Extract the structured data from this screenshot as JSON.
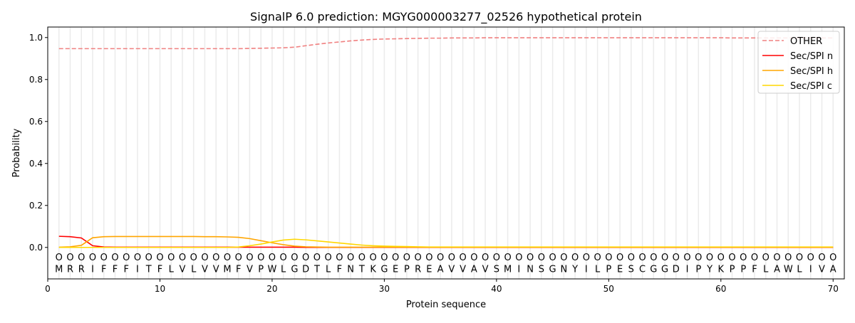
{
  "chart_data": {
    "type": "line",
    "title": "SignalP 6.0 prediction: MGYG000003277_02526 hypothetical protein",
    "xlabel": "Protein sequence",
    "ylabel": "Probability",
    "xlim": [
      0,
      71
    ],
    "ylim": [
      -0.15,
      1.05
    ],
    "xticks": [
      0,
      10,
      20,
      30,
      40,
      50,
      60,
      70
    ],
    "yticks": [
      "0.0",
      "0.2",
      "0.4",
      "0.6",
      "0.8",
      "1.0"
    ],
    "grid": "vertical lines at each residue",
    "legend_position": "top-right",
    "sequence": [
      "M",
      "R",
      "R",
      "I",
      "F",
      "F",
      "F",
      "I",
      "T",
      "F",
      "L",
      "V",
      "L",
      "V",
      "V",
      "M",
      "F",
      "V",
      "P",
      "W",
      "L",
      "G",
      "D",
      "T",
      "L",
      "F",
      "N",
      "T",
      "K",
      "G",
      "E",
      "P",
      "R",
      "E",
      "A",
      "V",
      "V",
      "A",
      "V",
      "S",
      "M",
      "I",
      "N",
      "S",
      "G",
      "N",
      "Y",
      "I",
      "L",
      "P",
      "E",
      "S",
      "C",
      "G",
      "G",
      "D",
      "I",
      "P",
      "Y",
      "K",
      "P",
      "P",
      "F",
      "L",
      "A",
      "W",
      "L",
      "I",
      "V",
      "A"
    ],
    "region_label": "O",
    "series": [
      {
        "name": "OTHER",
        "color": "#f08080",
        "dash": true,
        "values": [
          0.947,
          0.947,
          0.947,
          0.947,
          0.947,
          0.947,
          0.947,
          0.947,
          0.947,
          0.947,
          0.947,
          0.947,
          0.947,
          0.947,
          0.947,
          0.947,
          0.947,
          0.948,
          0.949,
          0.95,
          0.951,
          0.954,
          0.961,
          0.968,
          0.974,
          0.979,
          0.984,
          0.988,
          0.991,
          0.993,
          0.994,
          0.995,
          0.996,
          0.997,
          0.997,
          0.998,
          0.998,
          0.998,
          0.999,
          0.999,
          0.999,
          0.999,
          0.999,
          0.999,
          0.999,
          0.999,
          0.999,
          0.999,
          0.999,
          0.999,
          0.999,
          0.999,
          0.999,
          0.999,
          0.999,
          0.999,
          0.999,
          0.999,
          0.999,
          0.999,
          0.998,
          0.998,
          0.998,
          0.998,
          0.998,
          0.998,
          0.998,
          0.998,
          0.998,
          0.998
        ]
      },
      {
        "name": "Sec/SPI n",
        "color": "#ff0000",
        "dash": false,
        "values": [
          0.053,
          0.051,
          0.045,
          0.008,
          0.002,
          0.001,
          0.001,
          0.001,
          0.001,
          0.001,
          0.001,
          0.001,
          0.001,
          0.001,
          0.001,
          0.001,
          0.001,
          0.001,
          0.001,
          0.001,
          0.001,
          0.001,
          0,
          0,
          0,
          0,
          0,
          0,
          0,
          0,
          0,
          0,
          0,
          0,
          0,
          0,
          0,
          0,
          0,
          0,
          0,
          0,
          0,
          0,
          0,
          0,
          0,
          0,
          0,
          0,
          0,
          0,
          0,
          0,
          0,
          0,
          0,
          0,
          0,
          0,
          0,
          0,
          0,
          0,
          0,
          0,
          0,
          0,
          0,
          0
        ]
      },
      {
        "name": "Sec/SPI h",
        "color": "#ffa500",
        "dash": false,
        "values": [
          0.001,
          0.003,
          0.01,
          0.046,
          0.051,
          0.052,
          0.052,
          0.052,
          0.052,
          0.052,
          0.052,
          0.052,
          0.052,
          0.051,
          0.051,
          0.05,
          0.048,
          0.042,
          0.032,
          0.022,
          0.013,
          0.006,
          0.003,
          0.002,
          0.001,
          0.001,
          0.001,
          0.001,
          0.001,
          0.001,
          0.001,
          0.001,
          0.001,
          0.001,
          0.001,
          0.001,
          0.001,
          0.001,
          0.001,
          0.001,
          0.001,
          0.001,
          0.001,
          0.001,
          0.001,
          0.001,
          0.001,
          0.001,
          0.001,
          0.001,
          0.001,
          0.001,
          0.001,
          0.001,
          0.001,
          0.001,
          0.001,
          0.001,
          0.001,
          0.001,
          0.001,
          0.001,
          0.001,
          0.001,
          0.001,
          0.001,
          0.001,
          0.001,
          0.001,
          0.001
        ]
      },
      {
        "name": "Sec/SPI c",
        "color": "#ffd700",
        "dash": false,
        "values": [
          0,
          0,
          0,
          0,
          0,
          0,
          0,
          0,
          0,
          0,
          0,
          0,
          0,
          0,
          0,
          0,
          0.002,
          0.008,
          0.016,
          0.026,
          0.035,
          0.039,
          0.036,
          0.031,
          0.026,
          0.021,
          0.016,
          0.011,
          0.008,
          0.006,
          0.005,
          0.004,
          0.003,
          0.002,
          0.002,
          0.002,
          0.002,
          0.002,
          0.002,
          0.002,
          0.002,
          0.002,
          0.002,
          0.002,
          0.002,
          0.002,
          0.002,
          0.002,
          0.002,
          0.002,
          0.002,
          0.002,
          0.002,
          0.002,
          0.002,
          0.002,
          0.002,
          0.002,
          0.002,
          0.002,
          0.002,
          0.002,
          0.002,
          0.002,
          0.002,
          0.002,
          0.002,
          0.002,
          0.002,
          0.002
        ]
      }
    ]
  }
}
